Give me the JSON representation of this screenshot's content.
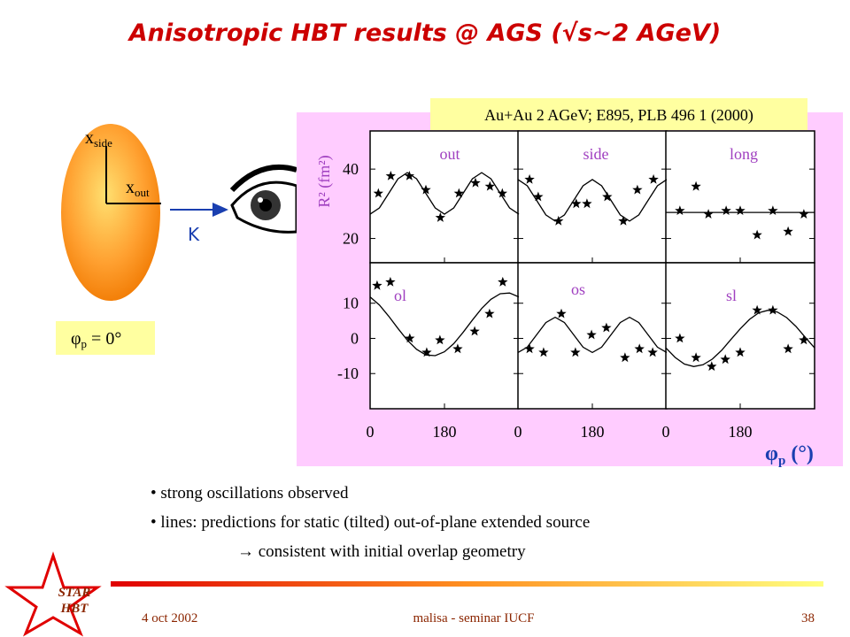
{
  "title": "Anisotropic HBT results @ AGS (√s~2 AGeV)",
  "source_note": "Au+Au 2 AGeV;  E895, PLB 496 1 (2000)",
  "diagram": {
    "x_side": "x",
    "x_side_sub": "side",
    "x_out": "x",
    "x_out_sub": "out",
    "k_label": "K",
    "phi": {
      "symbol": "φ",
      "sub": "p",
      "rest": " = 0°"
    }
  },
  "chart_data": {
    "type": "scatter",
    "y_label": "R² (fm²)",
    "x_label": {
      "symbol": "φ",
      "sub": "p",
      "unit": " (°)"
    },
    "xlim": [
      0,
      360
    ],
    "xticks": [
      0,
      180
    ],
    "rows": [
      {
        "ylim": [
          13,
          51
        ],
        "yticks": [
          20,
          40
        ]
      },
      {
        "ylim": [
          -20,
          21.5
        ],
        "yticks": [
          -10,
          0,
          10
        ]
      }
    ],
    "curve_x": [
      0,
      22.5,
      45,
      67.5,
      90,
      112.5,
      135,
      157.5,
      180,
      202.5,
      225,
      247.5,
      270,
      292.5,
      315,
      337.5,
      360
    ],
    "panels": [
      {
        "name": "out",
        "row": 0,
        "col": 0,
        "x": [
          20,
          50,
          95,
          135,
          170,
          215,
          255,
          290,
          320
        ],
        "values": [
          33,
          38,
          38,
          34,
          26,
          33,
          36,
          35,
          33
        ],
        "curve": [
          27,
          28.8,
          33,
          37.2,
          39,
          37.2,
          33,
          28.8,
          27,
          28.8,
          33,
          37.2,
          39,
          37.2,
          33,
          28.8,
          27
        ]
      },
      {
        "name": "side",
        "row": 0,
        "col": 1,
        "x": [
          28,
          49,
          98,
          141,
          167,
          216,
          255,
          289,
          328
        ],
        "values": [
          37,
          32,
          25,
          30,
          30,
          32,
          25,
          34,
          37
        ],
        "curve": [
          37,
          35.2,
          31,
          26.8,
          25,
          26.8,
          31,
          35.2,
          37,
          35.2,
          31,
          26.8,
          25,
          26.8,
          31,
          35.2,
          37
        ]
      },
      {
        "name": "long",
        "row": 0,
        "col": 2,
        "x": [
          34,
          73,
          103,
          146,
          180,
          221,
          259,
          296,
          334
        ],
        "values": [
          28,
          35,
          27,
          28,
          28,
          21,
          28,
          22,
          27
        ],
        "curve": [
          27.5,
          27.5,
          27.5,
          27.5,
          27.5,
          27.5,
          27.5,
          27.5,
          27.5,
          27.5,
          27.5,
          27.5,
          27.5,
          27.5,
          27.5,
          27.5,
          27.5
        ]
      },
      {
        "name": "ol",
        "row": 1,
        "col": 0,
        "x": [
          17,
          49,
          96,
          137,
          169,
          212,
          253,
          289,
          321
        ],
        "values": [
          15,
          16,
          0,
          -4,
          -0.5,
          -3,
          2,
          7,
          16
        ],
        "curve": [
          11.8,
          9.5,
          6.3,
          2.8,
          -0.5,
          -3.1,
          -4.7,
          -4.9,
          -3.8,
          -1.5,
          1.7,
          5.2,
          8.5,
          11.1,
          12.7,
          12.9,
          11.8
        ]
      },
      {
        "name": "os",
        "row": 1,
        "col": 1,
        "x": [
          28,
          62,
          105,
          139,
          178,
          214,
          259,
          294,
          326
        ],
        "values": [
          -3,
          -4,
          7,
          -4,
          1,
          3,
          -5.5,
          -3,
          -4
        ],
        "curve": [
          -4,
          -2.5,
          1,
          4.5,
          6,
          4.5,
          1,
          -2.5,
          -4,
          -2.5,
          1,
          4.5,
          6,
          4.5,
          1,
          -2.5,
          -4
        ]
      },
      {
        "name": "sl",
        "row": 1,
        "col": 2,
        "x": [
          34,
          73,
          111,
          144,
          180,
          221,
          259,
          296,
          334
        ],
        "values": [
          0,
          -5.5,
          -8,
          -6,
          -4,
          8,
          8,
          -3,
          -0.5
        ],
        "curve": [
          -2.7,
          -5.4,
          -7.3,
          -8,
          -7.5,
          -5.9,
          -3.4,
          -0.3,
          2.7,
          5.4,
          7.3,
          8,
          7.5,
          5.9,
          3.4,
          0.3,
          -2.7
        ]
      }
    ]
  },
  "bullets": [
    "• strong oscillations observed",
    "• lines: predictions for static (tilted) out-of-plane extended source",
    "→ consistent with initial overlap geometry"
  ],
  "logo": [
    "STAR",
    "HBT"
  ],
  "footer": {
    "date": "4 oct 2002",
    "talk": "malisa - seminar IUCF",
    "page": "38"
  }
}
